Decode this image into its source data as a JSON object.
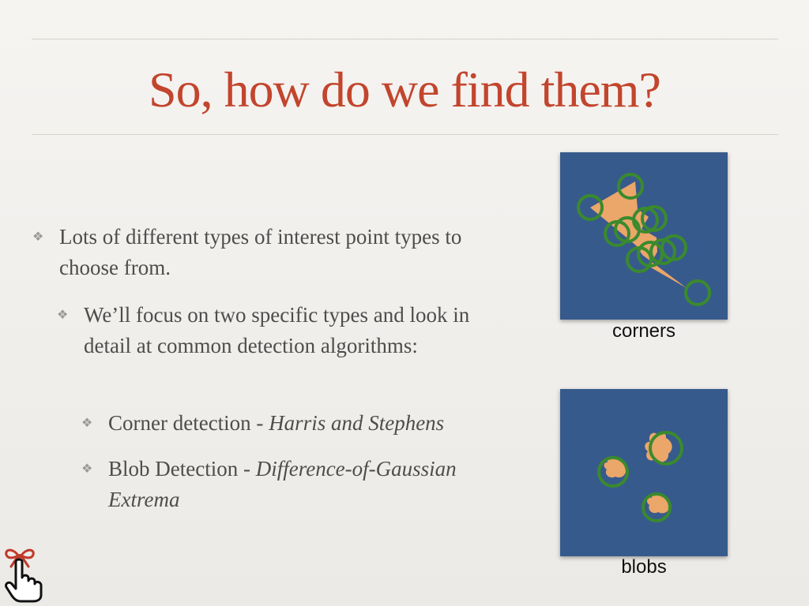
{
  "slide": {
    "title": "So, how do we find them?",
    "bullets": [
      {
        "level": 1,
        "text": "Lots of different types of interest point types to choose from."
      },
      {
        "level": 2,
        "text": "We’ll focus on two specific types and look in detail at common detection algorithms:"
      },
      {
        "level": 3,
        "prefix": "Corner detection - ",
        "emphasis": "Harris and Stephens"
      },
      {
        "level": 3,
        "prefix": "Blob Detection - ",
        "emphasis": "Difference-of-Gaussian Extrema"
      }
    ],
    "bullet_glyph": "❖",
    "figures": {
      "corners_caption": "corners",
      "blobs_caption": "blobs"
    },
    "colors": {
      "title": "#c2452d",
      "figure_background": "#375a8c",
      "shape_fill": "#eba66a",
      "detection_circle": "#3a8a2e"
    },
    "icons": [
      "pointer-hand-icon"
    ]
  }
}
